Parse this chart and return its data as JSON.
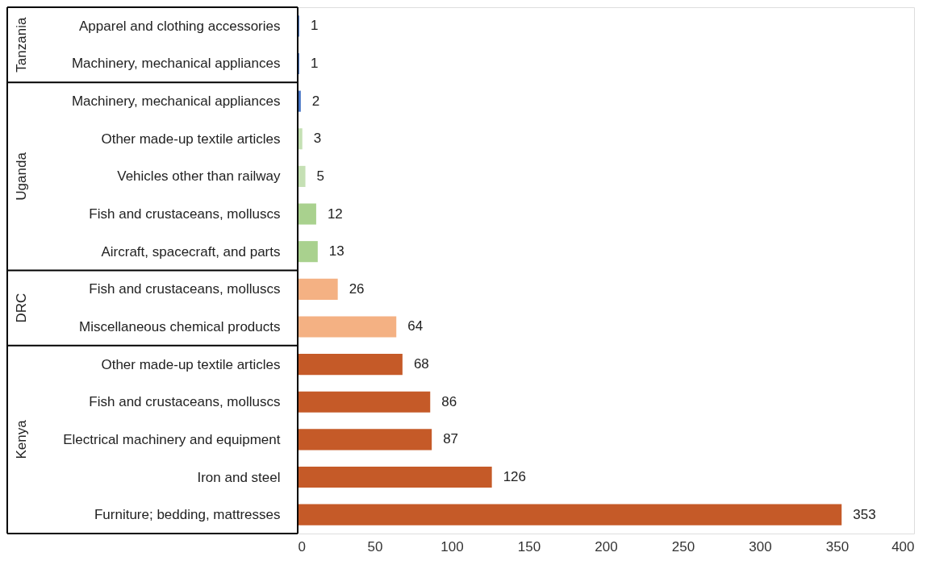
{
  "chart_data": {
    "type": "bar",
    "orientation": "horizontal",
    "data_labels": true,
    "grid": false,
    "annotations": [
      "Tanzania",
      "Uganda",
      "DRC",
      "Kenya"
    ],
    "categories": [
      "Apparel and clothing accessories",
      "Machinery, mechanical appliances",
      "Machinery, mechanical appliances",
      "Other made-up textile articles",
      "Vehicles other than railway",
      "Fish and crustaceans, molluscs",
      "Aircraft, spacecraft, and parts",
      "Fish and crustaceans, molluscs",
      "Miscellaneous chemical products",
      "Other made-up textile articles",
      "Fish and crustaceans, molluscs",
      "Electrical machinery and equipment",
      "Iron and steel",
      "Furniture; bedding, mattresses"
    ],
    "series": [
      {
        "color": "#4472c4",
        "values": [
          1,
          1,
          null,
          null,
          null,
          null,
          null,
          null,
          null,
          null,
          null,
          null,
          null,
          null
        ]
      },
      {
        "colors": [
          null,
          null,
          "#4472c4",
          "#c5e0b4",
          "#c5e0b4",
          "#a9d18e",
          "#a9d18e",
          null,
          null,
          null,
          null,
          null,
          null,
          null
        ],
        "values": [
          null,
          null,
          2,
          3,
          5,
          12,
          13,
          null,
          null,
          null,
          null,
          null,
          null,
          null
        ]
      },
      {
        "color": "#f4b183",
        "values": [
          null,
          null,
          null,
          null,
          null,
          null,
          null,
          26,
          64,
          null,
          null,
          null,
          null,
          null
        ]
      },
      {
        "color": "#c55a28",
        "values": [
          null,
          null,
          null,
          null,
          null,
          null,
          null,
          null,
          null,
          68,
          86,
          87,
          126,
          353
        ]
      }
    ],
    "xlim": [
      0,
      400
    ],
    "xticks": [
      0,
      50,
      100,
      150,
      200,
      250,
      300,
      350,
      400
    ]
  }
}
